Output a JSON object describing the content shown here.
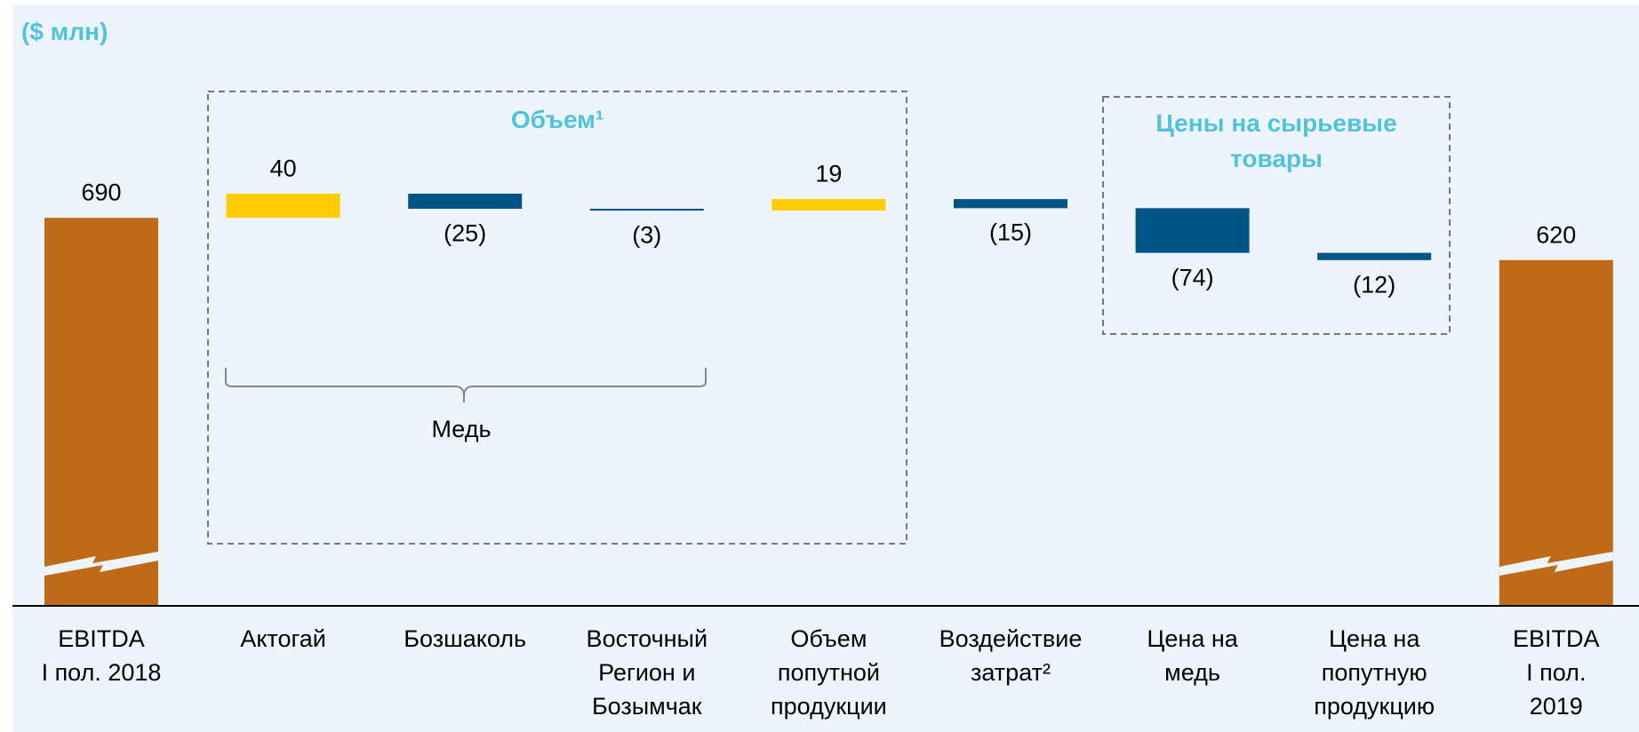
{
  "chart_data": {
    "type": "waterfall",
    "subtitle": "($ млн)",
    "categories": [
      "EBITDA\nI пол. 2018",
      "Актогай",
      "Бозшаколь",
      "Восточный\nРегион и\nБозымчак",
      "Объем\nпопутной\nпродукции",
      "Воздействие\nзатрат²",
      "Цена на\nмедь",
      "Цена на\nпопутную\nпродукцию",
      "EBITDA\nI пол. 2019"
    ],
    "values": [
      690,
      40,
      -25,
      -3,
      19,
      -15,
      -74,
      -12,
      620
    ],
    "value_labels": [
      "690",
      "40",
      "(25)",
      "(3)",
      "19",
      "(15)",
      "(74)",
      "(12)",
      "620"
    ],
    "colors": [
      "#bf6a16",
      "#ffcc00",
      "#005587",
      "#005587",
      "#ffcc00",
      "#005587",
      "#005587",
      "#005587",
      "#bf6a16"
    ],
    "annotations": [
      "Объем¹",
      "Цены на сырьевые\nтовары",
      "Медь"
    ]
  }
}
